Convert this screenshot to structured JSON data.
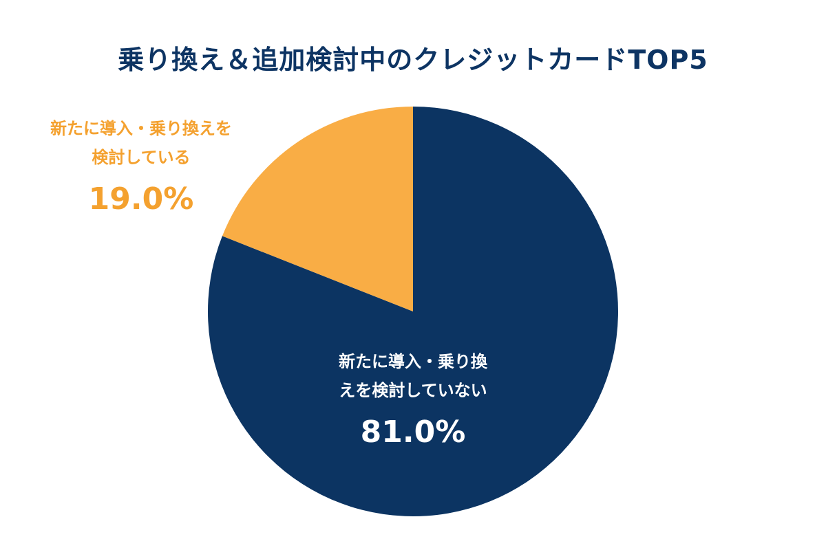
{
  "chart_data": {
    "type": "pie",
    "title": "乗り換え＆追加検討中のクレジットカードTOP5",
    "slices": [
      {
        "name": "新たに導入・乗り換えを検討していない",
        "value": 81.0,
        "label": "81.0%",
        "color": "#0c3462",
        "label_lines": [
          "新たに導入・乗り換",
          "えを検討していない"
        ]
      },
      {
        "name": "新たに導入・乗り換えを検討している",
        "value": 19.0,
        "label": "19.0%",
        "color": "#f9ad45",
        "label_lines": [
          "新たに導入・乗り換えを",
          "検討している"
        ]
      }
    ]
  }
}
